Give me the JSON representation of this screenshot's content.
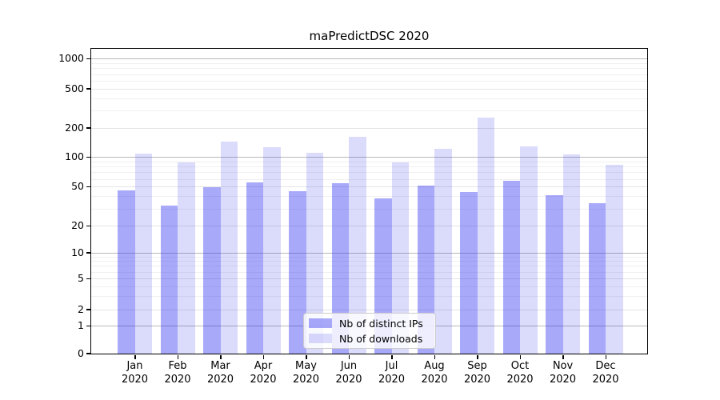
{
  "chart_data": {
    "type": "bar",
    "title": "maPredictDSC 2020",
    "categories": [
      "Jan",
      "Feb",
      "Mar",
      "Apr",
      "May",
      "Jun",
      "Jul",
      "Aug",
      "Sep",
      "Oct",
      "Nov",
      "Dec"
    ],
    "x_tick_second_line": "2020",
    "series": [
      {
        "name": "Nb of distinct IPs",
        "color": "rgba(40,40,240,0.40)",
        "values": [
          46,
          32,
          49,
          55,
          45,
          54,
          38,
          51,
          44,
          57,
          41,
          34
        ]
      },
      {
        "name": "Nb of downloads",
        "color": "rgba(40,40,240,0.17)",
        "values": [
          108,
          88,
          143,
          127,
          110,
          162,
          88,
          122,
          253,
          128,
          107,
          84
        ]
      }
    ],
    "yscale": "symlog",
    "y_ticks": [
      0,
      1,
      2,
      5,
      10,
      20,
      50,
      100,
      200,
      500,
      1000
    ],
    "ylim": [
      0,
      1400
    ],
    "grid": "horizontal major and minor gridlines",
    "legend": {
      "position": "bottom-center"
    }
  }
}
